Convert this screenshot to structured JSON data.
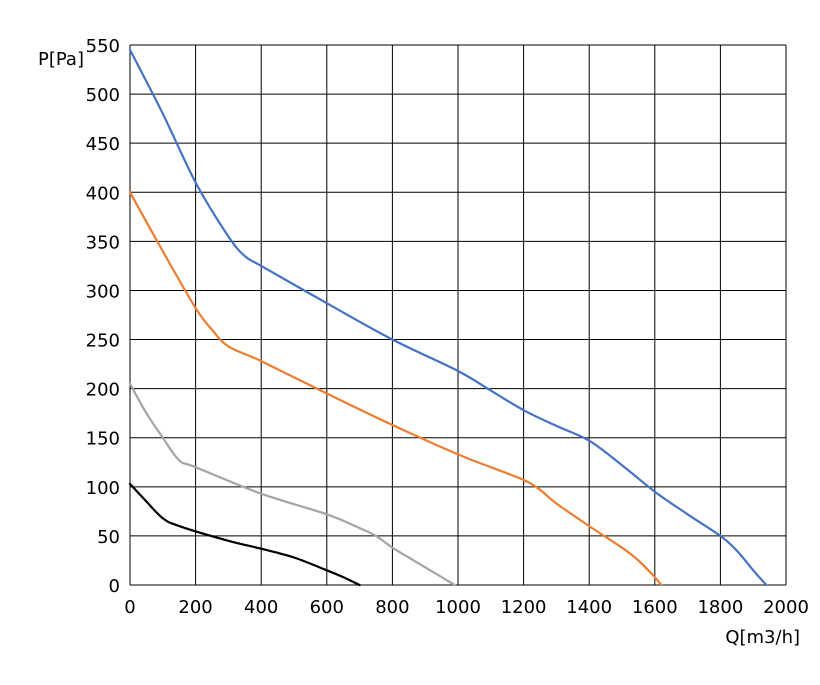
{
  "chart_data": {
    "type": "line",
    "title": "",
    "xlabel": "Q[m3/h]",
    "ylabel": "P[Pa]",
    "xlim": [
      0,
      2000
    ],
    "ylim": [
      0,
      550
    ],
    "xticks": [
      "0",
      "200",
      "400",
      "600",
      "800",
      "1000",
      "1200",
      "1400",
      "1600",
      "1800",
      "2000"
    ],
    "yticks": [
      "0",
      "50",
      "100",
      "150",
      "200",
      "250",
      "300",
      "350",
      "400",
      "450",
      "500",
      "550"
    ],
    "grid": true,
    "legend": "none",
    "series": [
      {
        "color": "#4472c4",
        "points": [
          [
            0,
            545
          ],
          [
            100,
            480
          ],
          [
            200,
            410
          ],
          [
            300,
            355
          ],
          [
            350,
            335
          ],
          [
            400,
            325
          ],
          [
            600,
            287
          ],
          [
            800,
            250
          ],
          [
            1000,
            218
          ],
          [
            1100,
            198
          ],
          [
            1200,
            178
          ],
          [
            1300,
            162
          ],
          [
            1400,
            147
          ],
          [
            1500,
            122
          ],
          [
            1600,
            95
          ],
          [
            1700,
            72
          ],
          [
            1800,
            50
          ],
          [
            1850,
            35
          ],
          [
            1900,
            15
          ],
          [
            1940,
            0
          ]
        ]
      },
      {
        "color": "#ed7d31",
        "points": [
          [
            0,
            400
          ],
          [
            100,
            340
          ],
          [
            200,
            282
          ],
          [
            250,
            260
          ],
          [
            300,
            243
          ],
          [
            400,
            228
          ],
          [
            600,
            195
          ],
          [
            800,
            163
          ],
          [
            1000,
            133
          ],
          [
            1100,
            120
          ],
          [
            1200,
            107
          ],
          [
            1250,
            97
          ],
          [
            1300,
            83
          ],
          [
            1400,
            60
          ],
          [
            1500,
            38
          ],
          [
            1550,
            25
          ],
          [
            1600,
            8
          ],
          [
            1620,
            0
          ]
        ]
      },
      {
        "color": "#a5a5a5",
        "points": [
          [
            0,
            205
          ],
          [
            50,
            175
          ],
          [
            100,
            150
          ],
          [
            150,
            127
          ],
          [
            200,
            120
          ],
          [
            400,
            93
          ],
          [
            600,
            72
          ],
          [
            700,
            58
          ],
          [
            750,
            50
          ],
          [
            800,
            38
          ],
          [
            850,
            28
          ],
          [
            900,
            18
          ],
          [
            950,
            8
          ],
          [
            990,
            0
          ]
        ]
      },
      {
        "color": "#000000",
        "points": [
          [
            0,
            103
          ],
          [
            50,
            85
          ],
          [
            100,
            68
          ],
          [
            150,
            60
          ],
          [
            300,
            45
          ],
          [
            400,
            37
          ],
          [
            500,
            28
          ],
          [
            600,
            15
          ],
          [
            650,
            8
          ],
          [
            700,
            0
          ]
        ]
      }
    ]
  }
}
